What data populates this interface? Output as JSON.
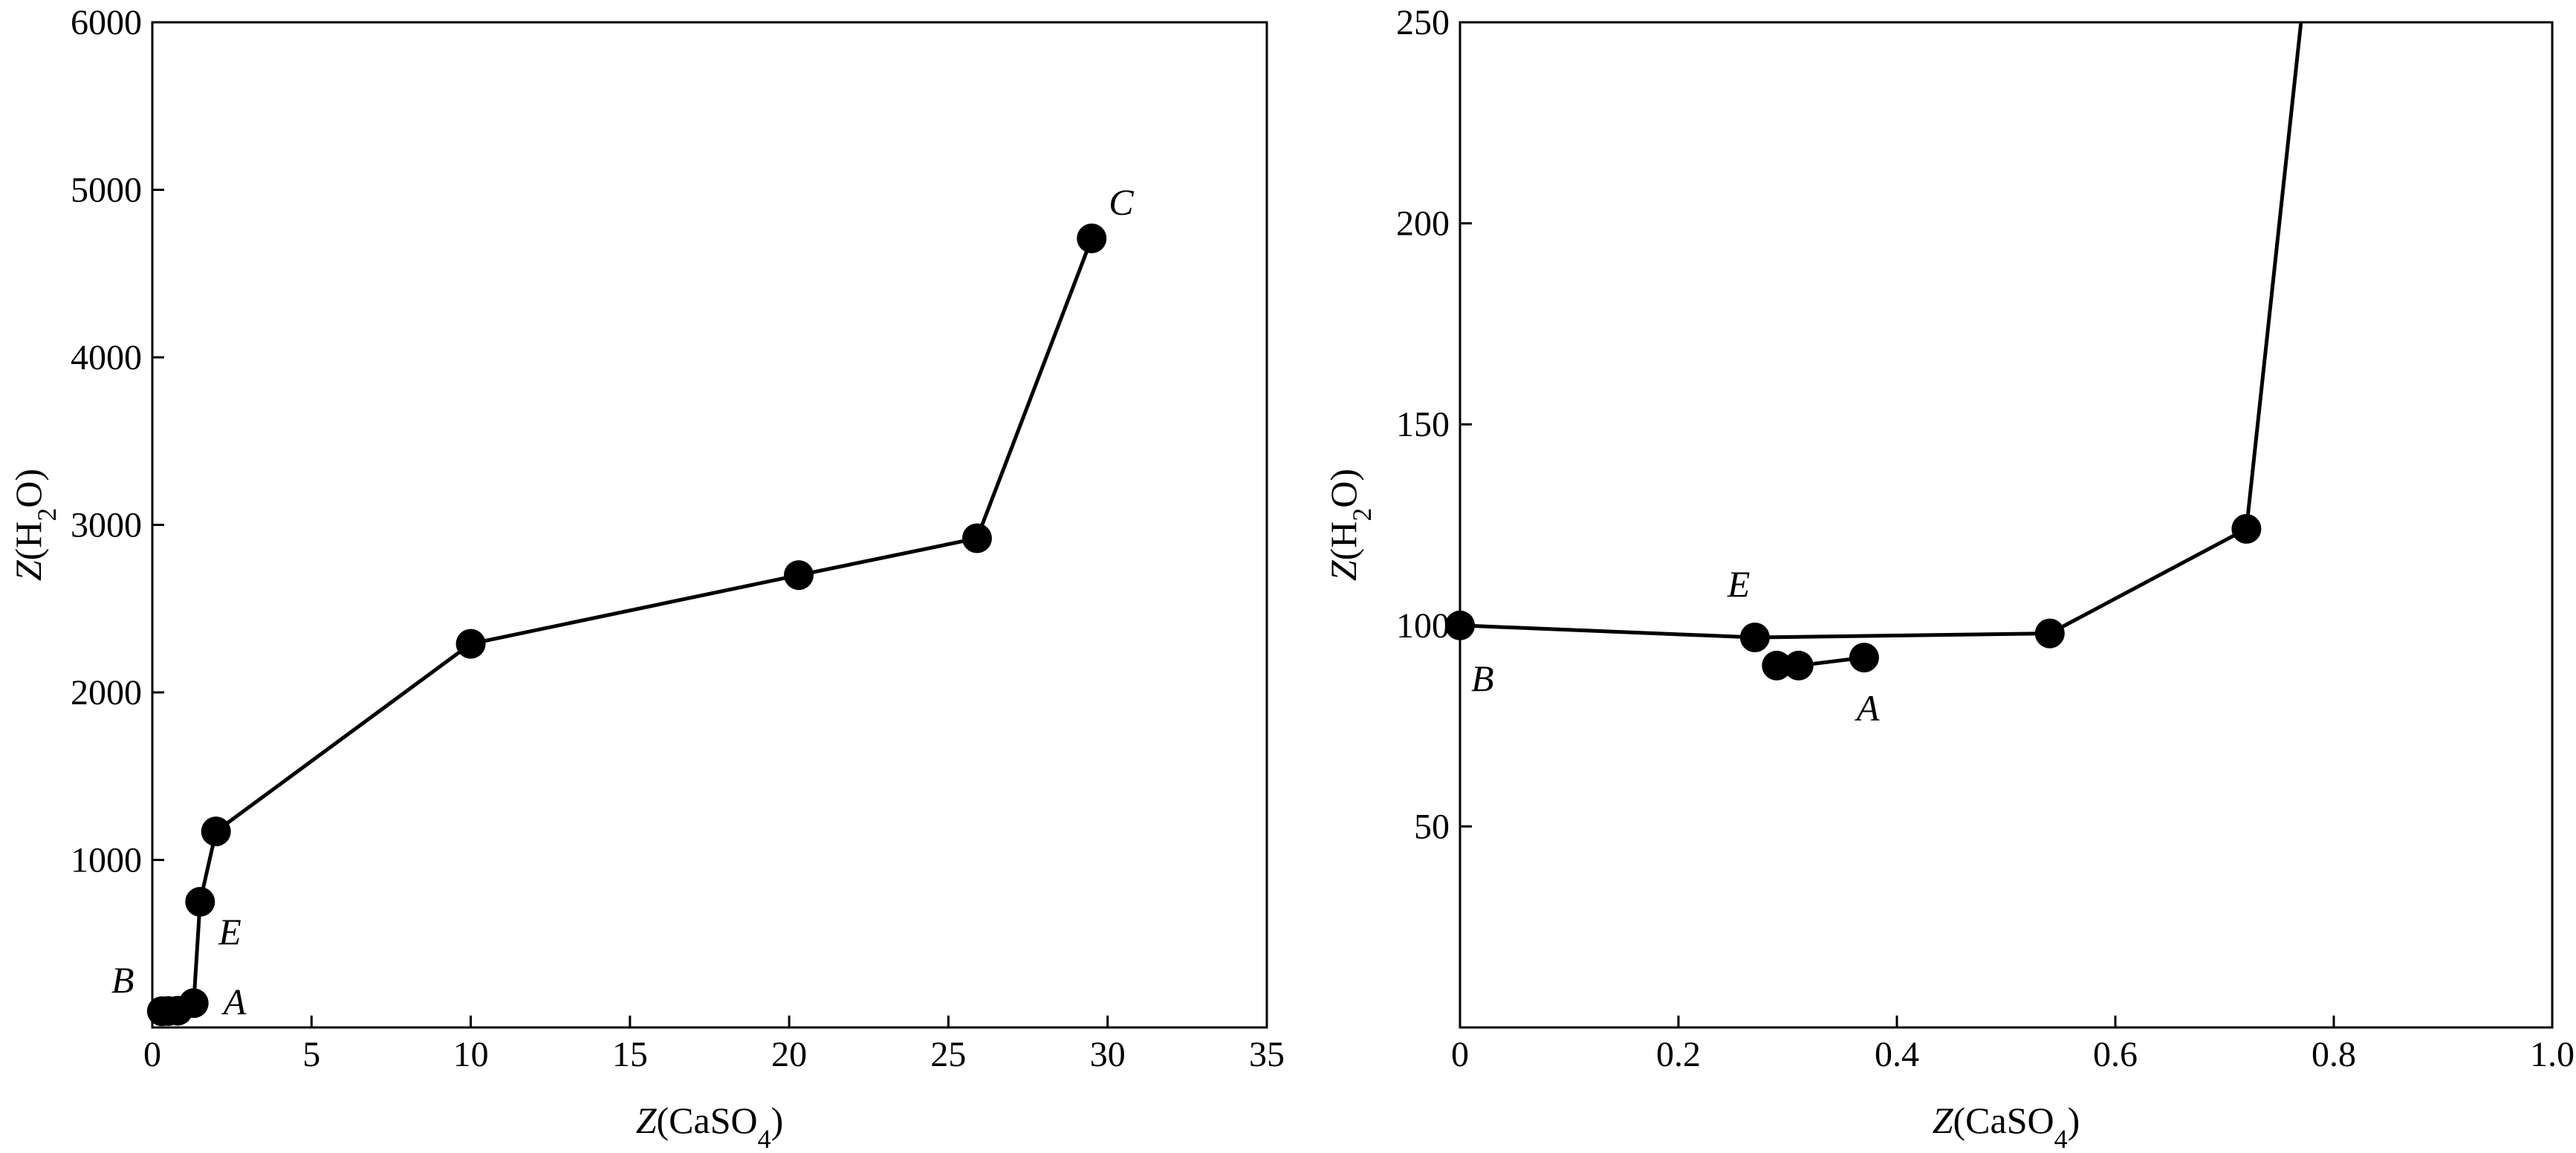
{
  "chart_data": [
    {
      "type": "line",
      "title": "",
      "xlabel": {
        "italic": "Z",
        "text": "(CaSO",
        "sub": "4",
        "close": ")"
      },
      "ylabel": {
        "italic": "Z",
        "text": "(H",
        "sub": "2",
        "close": "O)"
      },
      "xlim": [
        0,
        35
      ],
      "ylim": [
        0,
        6000
      ],
      "xticks": [
        0,
        5,
        10,
        15,
        20,
        25,
        30,
        35
      ],
      "yticks": [
        1000,
        2000,
        3000,
        4000,
        5000,
        6000
      ],
      "grid": false,
      "legend": "none",
      "series": [
        {
          "color": "#000000",
          "points": [
            {
              "x": 0.3,
              "y": 97
            },
            {
              "x": 0.5,
              "y": 98
            },
            {
              "x": 0.8,
              "y": 100
            },
            {
              "x": 1.3,
              "y": 145
            },
            {
              "x": 1.5,
              "y": 750
            },
            {
              "x": 2.0,
              "y": 1170
            },
            {
              "x": 10.0,
              "y": 2290
            },
            {
              "x": 20.3,
              "y": 2700
            },
            {
              "x": 25.9,
              "y": 2920
            },
            {
              "x": 29.5,
              "y": 4710
            }
          ]
        }
      ],
      "annotations": [
        {
          "text": "C",
          "x": 29.5,
          "y": 4710
        },
        {
          "text": "E",
          "x": 1.5,
          "y": 750
        },
        {
          "text": "B",
          "x": 0.3,
          "y": 97
        },
        {
          "text": "A",
          "x": 1.3,
          "y": 145
        }
      ]
    },
    {
      "type": "line",
      "title": "",
      "xlabel": {
        "italic": "Z",
        "text": "(CaSO",
        "sub": "4",
        "close": ")"
      },
      "ylabel": {
        "italic": "Z",
        "text": "(H",
        "sub": "2",
        "close": "O)"
      },
      "xlim": [
        0,
        1.0
      ],
      "ylim": [
        0,
        250
      ],
      "xticks": [
        "0",
        "0.2",
        "0.4",
        "0.6",
        "0.8",
        "1.0"
      ],
      "yticks": [
        50,
        100,
        150,
        200,
        250
      ],
      "grid": false,
      "legend": "none",
      "series": [
        {
          "color": "#000000",
          "points": [
            {
              "x": 0.0,
              "y": 100
            },
            {
              "x": 0.27,
              "y": 97
            },
            {
              "x": 0.54,
              "y": 98
            },
            {
              "x": 0.72,
              "y": 124
            }
          ],
          "line_end": {
            "x": 0.77,
            "y": 250
          }
        },
        {
          "color": "#000000",
          "points": [
            {
              "x": 0.29,
              "y": 90
            },
            {
              "x": 0.31,
              "y": 90
            },
            {
              "x": 0.37,
              "y": 92
            }
          ]
        }
      ],
      "annotations": [
        {
          "text": "E",
          "x": 0.27,
          "y": 97
        },
        {
          "text": "B",
          "x": 0.0,
          "y": 100
        },
        {
          "text": "A",
          "x": 0.37,
          "y": 92
        }
      ]
    }
  ]
}
